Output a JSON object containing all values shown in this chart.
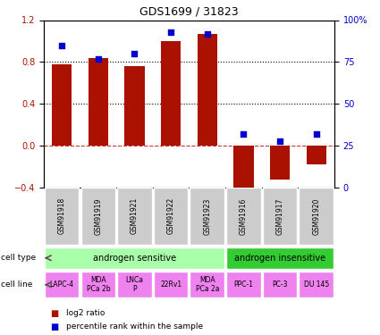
{
  "title": "GDS1699 / 31823",
  "samples": [
    "GSM91918",
    "GSM91919",
    "GSM91921",
    "GSM91922",
    "GSM91923",
    "GSM91916",
    "GSM91917",
    "GSM91920"
  ],
  "log2_ratio": [
    0.78,
    0.84,
    0.76,
    1.0,
    1.07,
    -0.45,
    -0.32,
    -0.18
  ],
  "percentile_rank": [
    85,
    77,
    80,
    93,
    92,
    32,
    28,
    32
  ],
  "cell_type_groups": [
    {
      "label": "androgen sensitive",
      "start": 0,
      "end": 5,
      "color": "#aaffaa"
    },
    {
      "label": "androgen insensitive",
      "start": 5,
      "end": 8,
      "color": "#33cc33"
    }
  ],
  "cell_lines": [
    "LAPC-4",
    "MDA\nPCa 2b",
    "LNCa\nP",
    "22Rv1",
    "MDA\nPCa 2a",
    "PPC-1",
    "PC-3",
    "DU 145"
  ],
  "cell_line_color": "#ee82ee",
  "sample_box_color": "#cccccc",
  "bar_color": "#aa1100",
  "dot_color": "#0000cc",
  "ylim_left": [
    -0.4,
    1.2
  ],
  "ylim_right": [
    0,
    100
  ],
  "yticks_left": [
    -0.4,
    0.0,
    0.4,
    0.8,
    1.2
  ],
  "yticks_right": [
    0,
    25,
    50,
    75,
    100
  ],
  "ytick_labels_right": [
    "0",
    "25",
    "50",
    "75",
    "100%"
  ],
  "hlines": [
    0.4,
    0.8
  ],
  "zero_line_color": "#cc3333",
  "dotted_line_color": "#000000",
  "legend_labels": [
    "log2 ratio",
    "percentile rank within the sample"
  ],
  "font_size": 7,
  "title_font_size": 9
}
